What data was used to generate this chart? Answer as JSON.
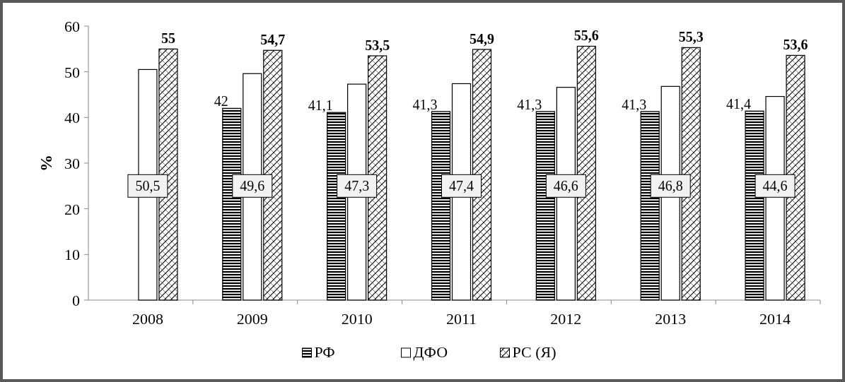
{
  "chart_data": {
    "type": "bar",
    "ylabel": "%",
    "categories": [
      "2008",
      "2009",
      "2010",
      "2011",
      "2012",
      "2013",
      "2014"
    ],
    "series": [
      {
        "name": "РФ",
        "color": "#000000",
        "values": [
          null,
          42,
          41.1,
          41.3,
          41.3,
          41.3,
          41.4
        ],
        "value_labels": [
          null,
          "42",
          "41,1",
          "41,3",
          "41,3",
          "41,3",
          "41,4"
        ]
      },
      {
        "name": "ДФО",
        "color": "#ffffff",
        "values": [
          50.5,
          49.6,
          47.3,
          47.4,
          46.6,
          46.8,
          44.6
        ],
        "value_labels": [
          "50,5",
          "49,6",
          "47,3",
          "47,4",
          "46,6",
          "46,8",
          "44,6"
        ]
      },
      {
        "name": "РС (Я)",
        "color": "#000000",
        "values": [
          55,
          54.7,
          53.5,
          54.9,
          55.6,
          55.3,
          53.6
        ],
        "value_labels": [
          "55",
          "54,7",
          "53,5",
          "54,9",
          "55,6",
          "55,3",
          "53,6"
        ]
      }
    ],
    "ylim": [
      0,
      60
    ],
    "yticks": [
      0,
      10,
      20,
      30,
      40,
      50,
      60
    ],
    "grid": false,
    "legend": "bottom"
  }
}
